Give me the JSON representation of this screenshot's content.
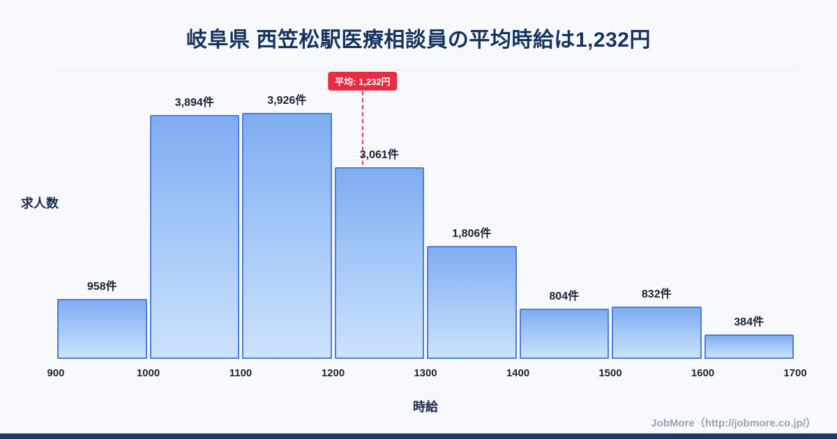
{
  "page": {
    "title": "岐阜県 西笠松駅医療相談員の平均時給は1,232円",
    "footer_credit": "JobMore（http://jobmore.co.jp/）"
  },
  "chart_data": {
    "type": "bar",
    "title": "岐阜県 西笠松駅医療相談員の平均時給は1,232円",
    "xlabel": "時給",
    "ylabel": "求人数",
    "x_range": [
      900,
      1700
    ],
    "x_ticks": [
      "900",
      "1000",
      "1100",
      "1200",
      "1300",
      "1400",
      "1500",
      "1600",
      "1700"
    ],
    "bins": [
      [
        900,
        1000
      ],
      [
        1000,
        1100
      ],
      [
        1100,
        1200
      ],
      [
        1200,
        1300
      ],
      [
        1300,
        1400
      ],
      [
        1400,
        1500
      ],
      [
        1500,
        1600
      ],
      [
        1600,
        1700
      ]
    ],
    "values": [
      958,
      3894,
      3926,
      3061,
      1806,
      804,
      832,
      384
    ],
    "value_labels": [
      "958件",
      "3,894件",
      "3,926件",
      "3,061件",
      "1,806件",
      "804件",
      "832件",
      "384件"
    ],
    "average_value": 1232,
    "average_label": "平均: 1,232円",
    "grid": false,
    "legend": "none",
    "colors": {
      "bar_fill_top": "#7fadf2",
      "bar_fill_bottom": "#cbe3fc",
      "bar_border": "#4a7ddd",
      "average_line": "#e0394d",
      "average_badge_bg": "#e52d43",
      "title_text": "#15325f",
      "background": "#f7f9fc",
      "bottom_bar": "#1c3a66"
    }
  }
}
